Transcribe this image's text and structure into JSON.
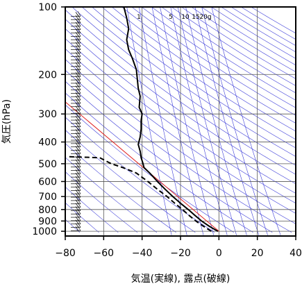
{
  "chart_data": {
    "type": "line",
    "title": "",
    "xlabel": "気温(実線), 露点(破線)",
    "ylabel": "気圧(hPa)",
    "x_axis": {
      "range": [
        -80,
        40
      ],
      "ticks": [
        -80,
        -60,
        -40,
        -20,
        0,
        20,
        40
      ],
      "tick_labels": [
        "−80",
        "−60",
        "−40",
        "−20",
        "0",
        "20",
        "40"
      ]
    },
    "y_axis": {
      "scale": "log",
      "range": [
        1050,
        100
      ],
      "ticks": [
        100,
        200,
        300,
        400,
        500,
        600,
        700,
        800,
        900,
        1000
      ],
      "tick_labels": [
        "100",
        "200",
        "300",
        "400",
        "500",
        "600",
        "700",
        "800",
        "900",
        "1000"
      ]
    },
    "grid": true,
    "mixing_ratio_labels": [
      "1",
      "5",
      "10",
      "15",
      "20g"
    ],
    "colors": {
      "dry_adiabat": "#3a3ad8",
      "reference_line": "#e02020",
      "profile": "#000000"
    },
    "series": [
      {
        "kind": "temperature",
        "line_style": "solid",
        "points": [
          {
            "p": 1000,
            "t": -0.5
          },
          {
            "p": 950,
            "t": -5
          },
          {
            "p": 900,
            "t": -9
          },
          {
            "p": 850,
            "t": -12.5
          },
          {
            "p": 800,
            "t": -16
          },
          {
            "p": 750,
            "t": -20
          },
          {
            "p": 700,
            "t": -24
          },
          {
            "p": 650,
            "t": -28
          },
          {
            "p": 600,
            "t": -32
          },
          {
            "p": 550,
            "t": -36
          },
          {
            "p": 520,
            "t": -39
          },
          {
            "p": 500,
            "t": -39.5
          },
          {
            "p": 470,
            "t": -40.5
          },
          {
            "p": 440,
            "t": -41
          },
          {
            "p": 410,
            "t": -42
          },
          {
            "p": 380,
            "t": -41
          },
          {
            "p": 350,
            "t": -40.5
          },
          {
            "p": 320,
            "t": -40.5
          },
          {
            "p": 300,
            "t": -40
          },
          {
            "p": 280,
            "t": -41.5
          },
          {
            "p": 250,
            "t": -41
          },
          {
            "p": 230,
            "t": -42
          },
          {
            "p": 210,
            "t": -42.5
          },
          {
            "p": 190,
            "t": -43
          },
          {
            "p": 170,
            "t": -45
          },
          {
            "p": 155,
            "t": -47
          },
          {
            "p": 140,
            "t": -48
          },
          {
            "p": 125,
            "t": -47
          },
          {
            "p": 112,
            "t": -48
          },
          {
            "p": 100,
            "t": -49.5
          }
        ]
      },
      {
        "kind": "dewpoint",
        "line_style": "dashed",
        "points": [
          {
            "p": 1000,
            "t": -4
          },
          {
            "p": 950,
            "t": -8
          },
          {
            "p": 900,
            "t": -12
          },
          {
            "p": 850,
            "t": -15.5
          },
          {
            "p": 800,
            "t": -19
          },
          {
            "p": 750,
            "t": -23
          },
          {
            "p": 700,
            "t": -27
          },
          {
            "p": 650,
            "t": -32
          },
          {
            "p": 600,
            "t": -37
          },
          {
            "p": 550,
            "t": -43
          },
          {
            "p": 520,
            "t": -50
          },
          {
            "p": 500,
            "t": -56
          },
          {
            "p": 485,
            "t": -59
          },
          {
            "p": 470,
            "t": -62
          },
          {
            "p": 465,
            "t": -78
          }
        ]
      }
    ]
  }
}
